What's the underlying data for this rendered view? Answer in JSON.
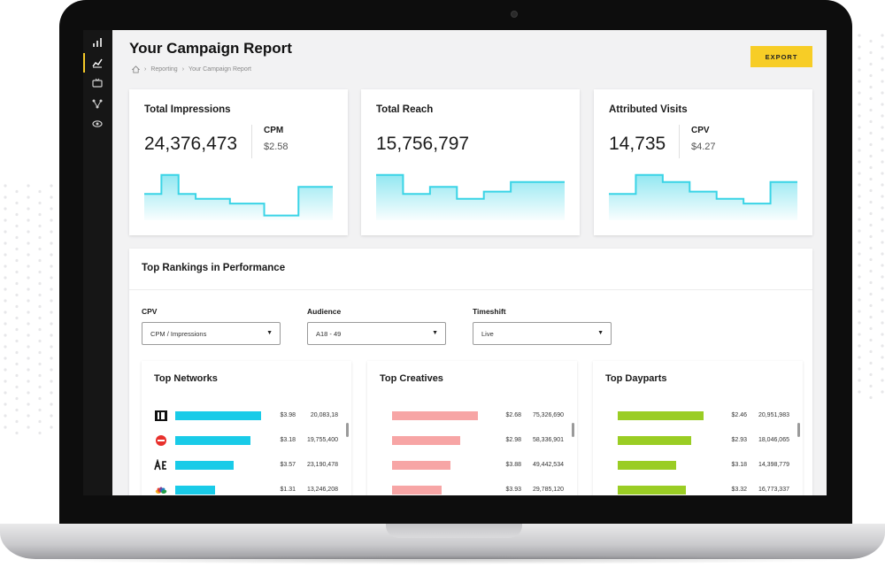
{
  "header": {
    "title": "Your Campaign Report",
    "breadcrumb": [
      "Reporting",
      "Your Campaign Report"
    ],
    "export_label": "EXPORT"
  },
  "sidebar": {
    "items": [
      {
        "icon": "bar-chart-icon"
      },
      {
        "icon": "line-chart-icon"
      },
      {
        "icon": "tv-icon"
      },
      {
        "icon": "network-icon"
      },
      {
        "icon": "eye-icon"
      }
    ],
    "active_index": 1
  },
  "colors": {
    "accent": "#f7cd26",
    "sparkline": "#3ad4e6",
    "networks_bar": "#19cbe8",
    "creatives_bar": "#f7a5a5",
    "dayparts_bar": "#9acd24"
  },
  "cards": [
    {
      "title": "Total Impressions",
      "value": "24,376,473",
      "sub_label": "CPM",
      "sub_value": "$2.58",
      "trend": [
        0.55,
        0.95,
        0.55,
        0.45,
        0.45,
        0.35,
        0.35,
        0.1,
        0.1,
        0.7,
        0.7
      ]
    },
    {
      "title": "Total Reach",
      "value": "15,756,797",
      "sub_label": "",
      "sub_value": "",
      "trend": [
        0.95,
        0.55,
        0.7,
        0.45,
        0.6,
        0.8,
        0.8
      ]
    },
    {
      "title": "Attributed Visits",
      "value": "14,735",
      "sub_label": "CPV",
      "sub_value": "$4.27",
      "trend": [
        0.55,
        0.95,
        0.8,
        0.6,
        0.45,
        0.35,
        0.8
      ]
    }
  ],
  "rankings": {
    "title": "Top Rankings in Performance",
    "filters": [
      {
        "label": "CPV",
        "value": "CPM / Impressions"
      },
      {
        "label": "Audience",
        "value": "A18 - 49"
      },
      {
        "label": "Timeshift",
        "value": "Live"
      }
    ],
    "panels": [
      {
        "title": "Top Networks",
        "rows": [
          {
            "logo": "id-network-icon",
            "share": 0.95,
            "cost": "$3.98",
            "count": "20,083,18"
          },
          {
            "logo": "food-network-icon",
            "share": 0.83,
            "cost": "$3.18",
            "count": "19,755,400"
          },
          {
            "logo": "ae-network-icon",
            "share": 0.65,
            "cost": "$3.57",
            "count": "23,190,478"
          },
          {
            "logo": "nbc-peacock-icon",
            "share": 0.44,
            "cost": "$1.31",
            "count": "13,246,208"
          }
        ]
      },
      {
        "title": "Top Creatives",
        "rows": [
          {
            "share": 0.95,
            "cost": "$2.68",
            "count": "75,326,690"
          },
          {
            "share": 0.75,
            "cost": "$2.98",
            "count": "58,336,901"
          },
          {
            "share": 0.65,
            "cost": "$3.88",
            "count": "49,442,534"
          },
          {
            "share": 0.55,
            "cost": "$3.93",
            "count": "29,785,120"
          }
        ]
      },
      {
        "title": "Top Dayparts",
        "rows": [
          {
            "share": 0.95,
            "cost": "$2.46",
            "count": "20,951,983"
          },
          {
            "share": 0.81,
            "cost": "$2.93",
            "count": "18,046,065"
          },
          {
            "share": 0.65,
            "cost": "$3.18",
            "count": "14,398,779"
          },
          {
            "share": 0.75,
            "cost": "$3.32",
            "count": "16,773,337"
          }
        ]
      }
    ]
  }
}
